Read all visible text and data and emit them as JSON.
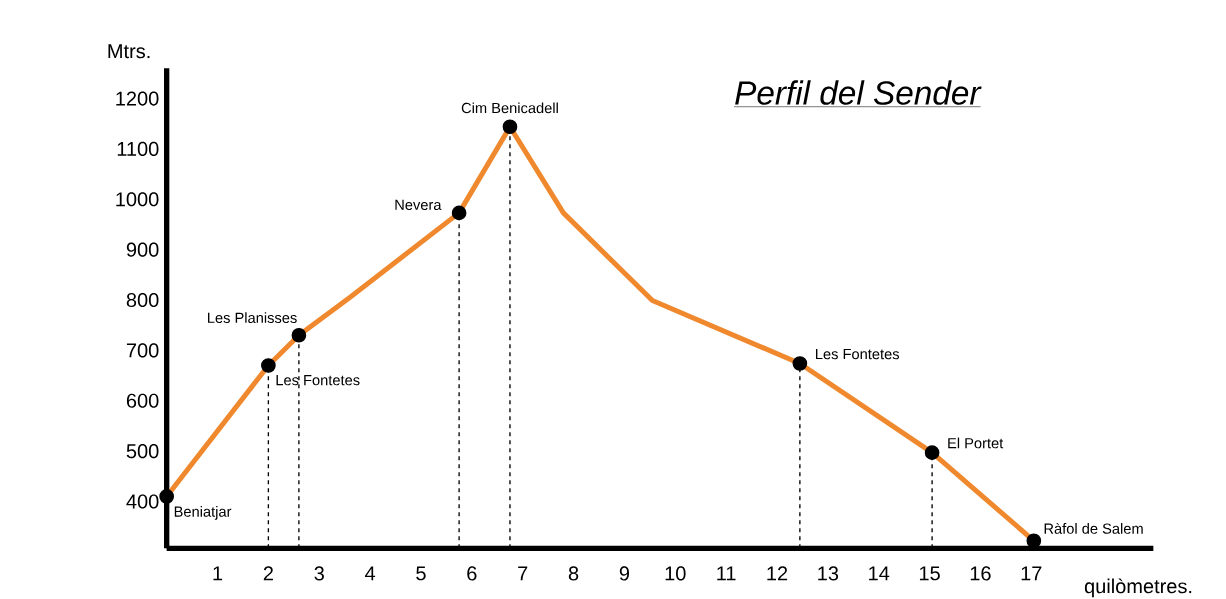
{
  "chart_data": {
    "type": "line",
    "title": "Perfil del Sender",
    "xlabel": "quilòmetres.",
    "ylabel": "Mtrs.",
    "xlim": [
      0,
      19.4
    ],
    "ylim": [
      307,
      1260
    ],
    "xticks": [
      1,
      2,
      3,
      4,
      5,
      6,
      7,
      8,
      9,
      10,
      11,
      12,
      13,
      14,
      15,
      16,
      17
    ],
    "yticks": [
      400,
      500,
      600,
      700,
      800,
      900,
      1000,
      1100,
      1200
    ],
    "grid": false,
    "series": [
      {
        "color": "#f0892e",
        "marker": "none",
        "line_style": "solid",
        "x": [
          0,
          2.0,
          2.6,
          3.6,
          5.75,
          6.75,
          7.8,
          9.55,
          12.45,
          15.05,
          17.05
        ],
        "values": [
          410,
          670,
          730,
          805,
          973,
          1144,
          973,
          799,
          674,
          497,
          322
        ]
      },
      {
        "type": "lollipop",
        "color": "#000000",
        "marker": "circle",
        "line_style": "dashed",
        "x": [
          0,
          2.0,
          2.6,
          5.75,
          6.75,
          12.45,
          15.05,
          17.05
        ],
        "values": [
          410,
          670,
          730,
          973,
          1144,
          674,
          497,
          322
        ]
      }
    ],
    "annotations": [
      {
        "text": "Beniatjar",
        "x": 0,
        "y": 410
      },
      {
        "text": "Les Fontetes",
        "x": 2.0,
        "y": 670
      },
      {
        "text": "Les Planisses",
        "x": 2.6,
        "y": 730
      },
      {
        "text": "Nevera",
        "x": 5.75,
        "y": 973
      },
      {
        "text": "Cim Benicadell",
        "x": 6.75,
        "y": 1144
      },
      {
        "text": "Les Fontetes",
        "x": 12.45,
        "y": 674
      },
      {
        "text": "El Portet",
        "x": 15.05,
        "y": 497
      },
      {
        "text": "Ràfol de Salem",
        "x": 17.05,
        "y": 322
      }
    ]
  }
}
